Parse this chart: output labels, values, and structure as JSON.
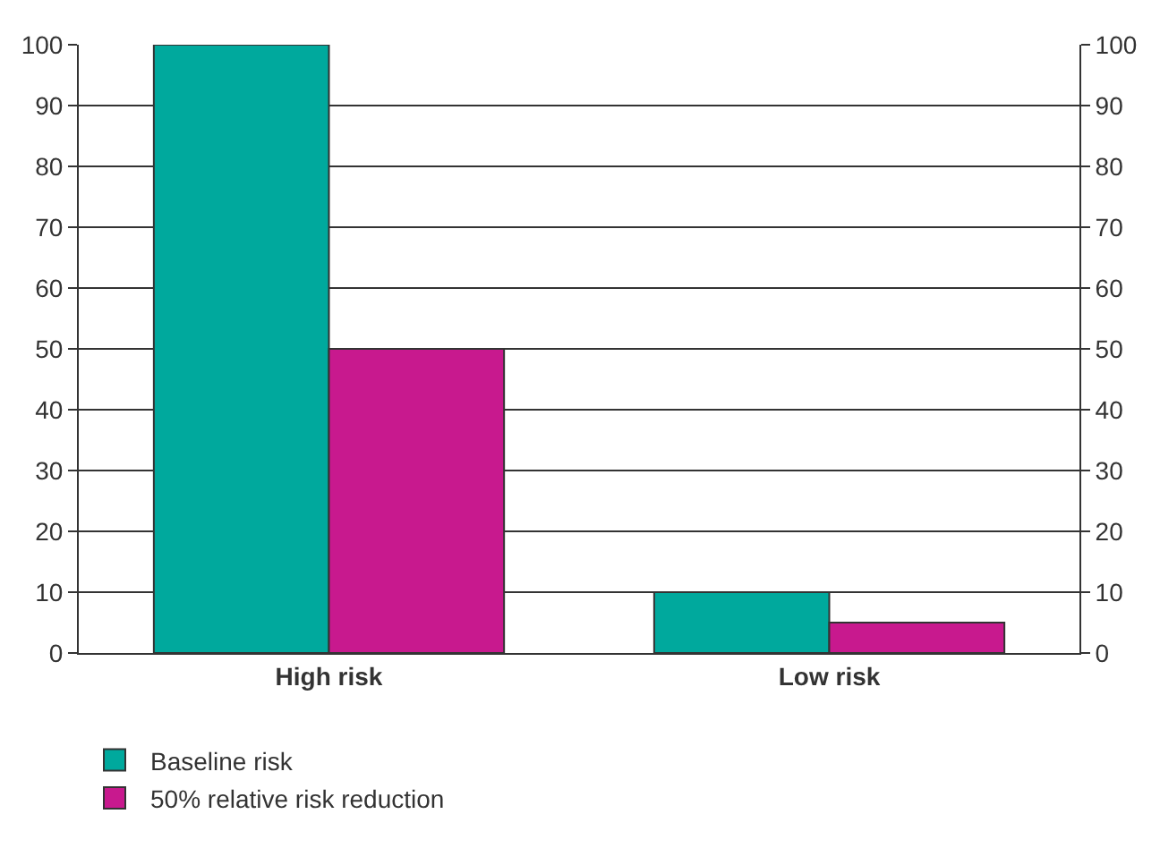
{
  "chart_data": {
    "type": "bar",
    "categories": [
      "High risk",
      "Low risk"
    ],
    "series": [
      {
        "name": "Baseline risk",
        "color": "#00a99d",
        "values": [
          100,
          10
        ]
      },
      {
        "name": "50% relative risk reduction",
        "color": "#c8198e",
        "values": [
          50,
          5
        ]
      }
    ],
    "ylim": [
      0,
      100
    ],
    "yticks": [
      0,
      10,
      20,
      30,
      40,
      50,
      60,
      70,
      80,
      90,
      100
    ],
    "y2lim": [
      0,
      100
    ],
    "y2ticks": [
      0,
      10,
      20,
      30,
      40,
      50,
      60,
      70,
      80,
      90,
      100
    ],
    "grid": "y",
    "legend": "bottom left"
  }
}
